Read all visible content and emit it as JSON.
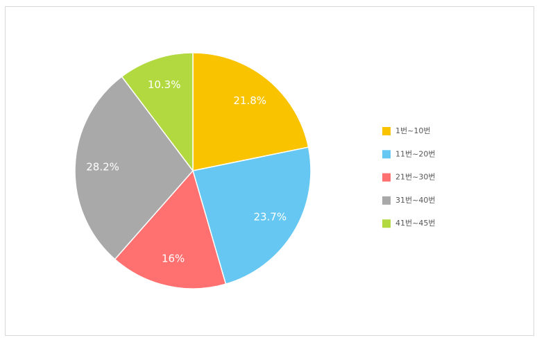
{
  "chart_data": {
    "type": "pie",
    "categories": [
      "1번~10번",
      "11번~20번",
      "21번~30번",
      "31번~40번",
      "41번~45번"
    ],
    "values": [
      21.8,
      23.7,
      16,
      28.2,
      10.3
    ],
    "value_labels": [
      "21.8%",
      "23.7%",
      "16%",
      "28.2%",
      "10.3%"
    ],
    "colors": [
      "#f9c300",
      "#66c8f2",
      "#ff7070",
      "#a9a9a9",
      "#b3d941"
    ],
    "legend": "right"
  }
}
